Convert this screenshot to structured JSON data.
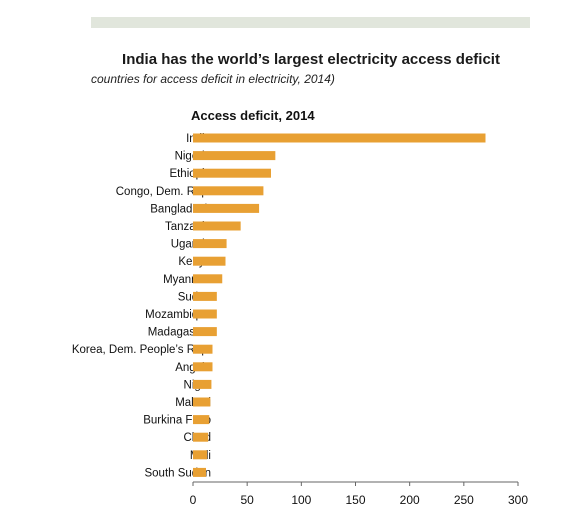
{
  "header": {
    "title": "India has the world’s largest electricity access deficit",
    "subtitle": "countries for access deficit in electricity, 2014)"
  },
  "colors": {
    "bar": "#E8A033",
    "band": "#E1E6DC",
    "axis": "#666666"
  },
  "chart_data": {
    "type": "bar",
    "orientation": "horizontal",
    "title": "Access deficit, 2014",
    "xlabel": "",
    "ylabel": "",
    "categories": [
      "India",
      "Nigeria",
      "Ethiopia",
      "Congo, Dem. Rep.",
      "Bangladesh",
      "Tanzania",
      "Uganda",
      "Kenya",
      "Myanmar",
      "Sudan",
      "Mozambique",
      "Madagascar",
      "Korea, Dem. People’s Rep.",
      "Angola",
      "Niger",
      "Malawi",
      "Burkina Faso",
      "Chad",
      "Mali",
      "South Sudan"
    ],
    "values": [
      270,
      76,
      72,
      65,
      61,
      44,
      31,
      30,
      27,
      22,
      22,
      22,
      18,
      18,
      17,
      16,
      15,
      14,
      13,
      12
    ],
    "xlim": [
      0,
      300
    ],
    "xticks": [
      0,
      50,
      100,
      150,
      200,
      250,
      300
    ],
    "grid": false,
    "legend": "none"
  }
}
